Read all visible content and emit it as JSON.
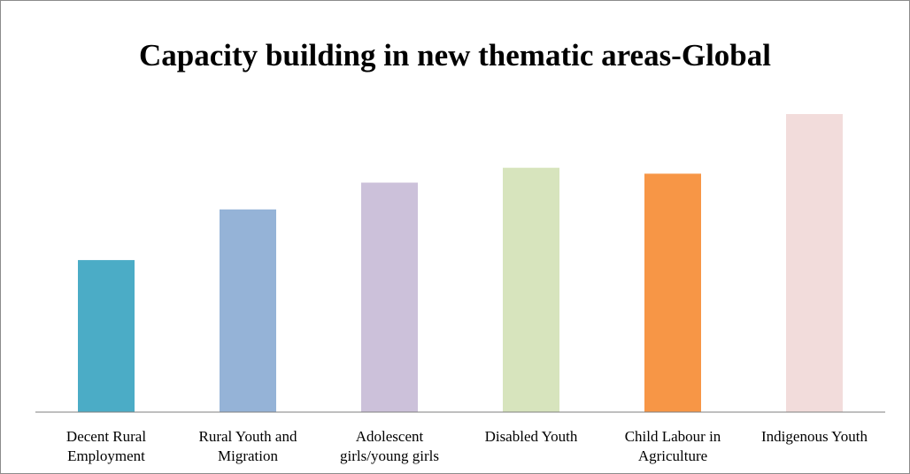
{
  "chart_data": {
    "type": "bar",
    "title": "Capacity building in new thematic areas-Global",
    "xlabel": "",
    "ylabel": "",
    "categories": [
      [
        "Decent Rural",
        "Employment"
      ],
      [
        "Rural Youth and",
        "Migration"
      ],
      [
        "Adolescent",
        "girls/young girls"
      ],
      [
        "Disabled Youth"
      ],
      [
        "Child Labour in",
        "Agriculture"
      ],
      [
        "Indigenous Youth"
      ]
    ],
    "values": [
      0.51,
      0.68,
      0.77,
      0.82,
      0.8,
      1.0
    ],
    "ylim": [
      0,
      1.0
    ],
    "colors": [
      "#4BACC6",
      "#95B3D7",
      "#CCC1DA",
      "#D7E4BD",
      "#F79646",
      "#F2DCDB"
    ],
    "grid": false,
    "legend": "none"
  }
}
